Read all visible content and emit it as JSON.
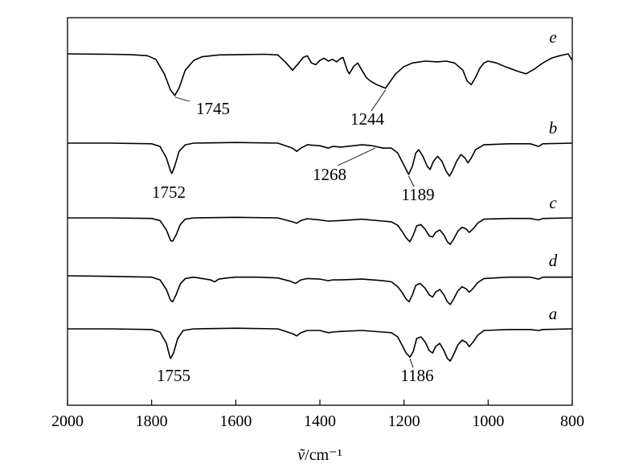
{
  "chart_data": {
    "type": "line",
    "title": "",
    "xlabel_symbol": "ṽ",
    "xlabel_unit": "/cm⁻¹",
    "xlim": [
      2000,
      800
    ],
    "x_ticks": [
      "2000",
      "1800",
      "1600",
      "1400",
      "1200",
      "1000",
      "800"
    ],
    "series": [
      {
        "name": "e",
        "points": [
          [
            2000,
            0.0
          ],
          [
            1900,
            -0.01
          ],
          [
            1850,
            -0.02
          ],
          [
            1810,
            -0.05
          ],
          [
            1790,
            -0.15
          ],
          [
            1770,
            -0.55
          ],
          [
            1755,
            -1.0
          ],
          [
            1745,
            -1.15
          ],
          [
            1735,
            -0.95
          ],
          [
            1720,
            -0.45
          ],
          [
            1700,
            -0.18
          ],
          [
            1680,
            -0.08
          ],
          [
            1640,
            -0.03
          ],
          [
            1590,
            -0.02
          ],
          [
            1530,
            -0.01
          ],
          [
            1500,
            -0.03
          ],
          [
            1480,
            -0.25
          ],
          [
            1465,
            -0.45
          ],
          [
            1450,
            -0.25
          ],
          [
            1440,
            -0.1
          ],
          [
            1430,
            -0.05
          ],
          [
            1420,
            -0.25
          ],
          [
            1410,
            -0.3
          ],
          [
            1400,
            -0.18
          ],
          [
            1390,
            -0.12
          ],
          [
            1380,
            -0.2
          ],
          [
            1370,
            -0.15
          ],
          [
            1360,
            -0.22
          ],
          [
            1350,
            -0.12
          ],
          [
            1345,
            -0.1
          ],
          [
            1335,
            -0.45
          ],
          [
            1330,
            -0.55
          ],
          [
            1320,
            -0.35
          ],
          [
            1310,
            -0.25
          ],
          [
            1300,
            -0.45
          ],
          [
            1290,
            -0.65
          ],
          [
            1280,
            -0.75
          ],
          [
            1265,
            -0.85
          ],
          [
            1250,
            -0.92
          ],
          [
            1244,
            -0.95
          ],
          [
            1235,
            -0.8
          ],
          [
            1220,
            -0.55
          ],
          [
            1200,
            -0.35
          ],
          [
            1180,
            -0.25
          ],
          [
            1150,
            -0.2
          ],
          [
            1120,
            -0.22
          ],
          [
            1100,
            -0.2
          ],
          [
            1080,
            -0.25
          ],
          [
            1060,
            -0.45
          ],
          [
            1050,
            -0.75
          ],
          [
            1040,
            -0.85
          ],
          [
            1030,
            -0.65
          ],
          [
            1020,
            -0.4
          ],
          [
            1010,
            -0.25
          ],
          [
            1000,
            -0.2
          ],
          [
            980,
            -0.25
          ],
          [
            960,
            -0.35
          ],
          [
            930,
            -0.48
          ],
          [
            910,
            -0.55
          ],
          [
            890,
            -0.42
          ],
          [
            870,
            -0.25
          ],
          [
            850,
            -0.12
          ],
          [
            830,
            -0.05
          ],
          [
            810,
            0.0
          ],
          [
            800,
            -0.18
          ]
        ]
      },
      {
        "name": "b",
        "points": [
          [
            2000,
            0.0
          ],
          [
            1900,
            0.0
          ],
          [
            1800,
            -0.02
          ],
          [
            1780,
            -0.1
          ],
          [
            1765,
            -0.45
          ],
          [
            1755,
            -0.85
          ],
          [
            1752,
            -0.92
          ],
          [
            1745,
            -0.7
          ],
          [
            1735,
            -0.25
          ],
          [
            1720,
            -0.05
          ],
          [
            1700,
            0.0
          ],
          [
            1600,
            0.02
          ],
          [
            1500,
            0.0
          ],
          [
            1465,
            -0.15
          ],
          [
            1455,
            -0.25
          ],
          [
            1445,
            -0.15
          ],
          [
            1430,
            -0.05
          ],
          [
            1400,
            -0.08
          ],
          [
            1380,
            -0.15
          ],
          [
            1370,
            -0.1
          ],
          [
            1350,
            -0.12
          ],
          [
            1300,
            -0.05
          ],
          [
            1280,
            -0.07
          ],
          [
            1268,
            -0.1
          ],
          [
            1250,
            -0.15
          ],
          [
            1230,
            -0.15
          ],
          [
            1215,
            -0.3
          ],
          [
            1205,
            -0.55
          ],
          [
            1195,
            -0.8
          ],
          [
            1189,
            -0.95
          ],
          [
            1180,
            -0.7
          ],
          [
            1172,
            -0.3
          ],
          [
            1165,
            -0.2
          ],
          [
            1155,
            -0.4
          ],
          [
            1145,
            -0.7
          ],
          [
            1138,
            -0.8
          ],
          [
            1130,
            -0.55
          ],
          [
            1120,
            -0.4
          ],
          [
            1110,
            -0.55
          ],
          [
            1100,
            -0.85
          ],
          [
            1092,
            -1.0
          ],
          [
            1085,
            -0.85
          ],
          [
            1075,
            -0.55
          ],
          [
            1065,
            -0.35
          ],
          [
            1055,
            -0.45
          ],
          [
            1048,
            -0.6
          ],
          [
            1040,
            -0.45
          ],
          [
            1030,
            -0.2
          ],
          [
            1010,
            -0.05
          ],
          [
            950,
            -0.02
          ],
          [
            900,
            -0.02
          ],
          [
            880,
            -0.1
          ],
          [
            870,
            -0.02
          ],
          [
            800,
            0.0
          ]
        ]
      },
      {
        "name": "c",
        "points": [
          [
            2000,
            0.0
          ],
          [
            1900,
            0.0
          ],
          [
            1800,
            -0.02
          ],
          [
            1780,
            -0.1
          ],
          [
            1765,
            -0.45
          ],
          [
            1755,
            -0.85
          ],
          [
            1750,
            -0.88
          ],
          [
            1742,
            -0.65
          ],
          [
            1732,
            -0.25
          ],
          [
            1720,
            -0.05
          ],
          [
            1700,
            0.0
          ],
          [
            1600,
            0.02
          ],
          [
            1500,
            0.0
          ],
          [
            1465,
            -0.15
          ],
          [
            1455,
            -0.2
          ],
          [
            1445,
            -0.1
          ],
          [
            1430,
            -0.03
          ],
          [
            1400,
            -0.08
          ],
          [
            1380,
            -0.12
          ],
          [
            1350,
            -0.1
          ],
          [
            1300,
            -0.05
          ],
          [
            1250,
            -0.12
          ],
          [
            1230,
            -0.15
          ],
          [
            1215,
            -0.28
          ],
          [
            1205,
            -0.5
          ],
          [
            1195,
            -0.75
          ],
          [
            1186,
            -0.9
          ],
          [
            1178,
            -0.65
          ],
          [
            1170,
            -0.3
          ],
          [
            1160,
            -0.25
          ],
          [
            1150,
            -0.42
          ],
          [
            1140,
            -0.68
          ],
          [
            1132,
            -0.72
          ],
          [
            1125,
            -0.55
          ],
          [
            1115,
            -0.45
          ],
          [
            1105,
            -0.65
          ],
          [
            1097,
            -0.9
          ],
          [
            1090,
            -1.0
          ],
          [
            1082,
            -0.8
          ],
          [
            1072,
            -0.5
          ],
          [
            1062,
            -0.35
          ],
          [
            1052,
            -0.42
          ],
          [
            1045,
            -0.55
          ],
          [
            1035,
            -0.4
          ],
          [
            1025,
            -0.2
          ],
          [
            1010,
            -0.05
          ],
          [
            950,
            -0.02
          ],
          [
            900,
            -0.02
          ],
          [
            880,
            -0.08
          ],
          [
            870,
            -0.02
          ],
          [
            800,
            0.0
          ]
        ]
      },
      {
        "name": "d",
        "points": [
          [
            2000,
            0.0
          ],
          [
            1900,
            -0.02
          ],
          [
            1800,
            -0.05
          ],
          [
            1780,
            -0.15
          ],
          [
            1765,
            -0.5
          ],
          [
            1755,
            -0.9
          ],
          [
            1750,
            -0.95
          ],
          [
            1742,
            -0.7
          ],
          [
            1732,
            -0.3
          ],
          [
            1720,
            -0.1
          ],
          [
            1700,
            -0.05
          ],
          [
            1680,
            -0.1
          ],
          [
            1660,
            -0.15
          ],
          [
            1650,
            -0.22
          ],
          [
            1640,
            -0.12
          ],
          [
            1620,
            -0.08
          ],
          [
            1600,
            -0.05
          ],
          [
            1550,
            -0.05
          ],
          [
            1500,
            -0.08
          ],
          [
            1470,
            -0.2
          ],
          [
            1458,
            -0.28
          ],
          [
            1445,
            -0.15
          ],
          [
            1430,
            -0.1
          ],
          [
            1400,
            -0.12
          ],
          [
            1380,
            -0.18
          ],
          [
            1370,
            -0.15
          ],
          [
            1350,
            -0.15
          ],
          [
            1300,
            -0.12
          ],
          [
            1250,
            -0.18
          ],
          [
            1230,
            -0.22
          ],
          [
            1215,
            -0.4
          ],
          [
            1205,
            -0.6
          ],
          [
            1195,
            -0.85
          ],
          [
            1188,
            -0.95
          ],
          [
            1180,
            -0.7
          ],
          [
            1172,
            -0.35
          ],
          [
            1162,
            -0.28
          ],
          [
            1150,
            -0.45
          ],
          [
            1140,
            -0.7
          ],
          [
            1132,
            -0.78
          ],
          [
            1125,
            -0.6
          ],
          [
            1115,
            -0.5
          ],
          [
            1105,
            -0.7
          ],
          [
            1097,
            -0.95
          ],
          [
            1090,
            -1.05
          ],
          [
            1082,
            -0.85
          ],
          [
            1072,
            -0.55
          ],
          [
            1062,
            -0.4
          ],
          [
            1052,
            -0.48
          ],
          [
            1045,
            -0.6
          ],
          [
            1035,
            -0.45
          ],
          [
            1025,
            -0.25
          ],
          [
            1010,
            -0.1
          ],
          [
            950,
            -0.05
          ],
          [
            900,
            -0.05
          ],
          [
            880,
            -0.12
          ],
          [
            870,
            -0.05
          ],
          [
            800,
            -0.05
          ]
        ]
      },
      {
        "name": "a",
        "points": [
          [
            2000,
            0.0
          ],
          [
            1900,
            0.0
          ],
          [
            1800,
            -0.02
          ],
          [
            1780,
            -0.1
          ],
          [
            1765,
            -0.45
          ],
          [
            1758,
            -0.8
          ],
          [
            1755,
            -0.92
          ],
          [
            1748,
            -0.75
          ],
          [
            1738,
            -0.3
          ],
          [
            1725,
            -0.05
          ],
          [
            1700,
            0.0
          ],
          [
            1600,
            0.02
          ],
          [
            1500,
            0.0
          ],
          [
            1465,
            -0.15
          ],
          [
            1455,
            -0.22
          ],
          [
            1445,
            -0.12
          ],
          [
            1430,
            -0.05
          ],
          [
            1400,
            -0.05
          ],
          [
            1380,
            -0.12
          ],
          [
            1370,
            -0.1
          ],
          [
            1350,
            -0.08
          ],
          [
            1300,
            -0.05
          ],
          [
            1250,
            -0.1
          ],
          [
            1230,
            -0.12
          ],
          [
            1215,
            -0.25
          ],
          [
            1205,
            -0.5
          ],
          [
            1195,
            -0.75
          ],
          [
            1186,
            -0.88
          ],
          [
            1178,
            -0.7
          ],
          [
            1170,
            -0.3
          ],
          [
            1160,
            -0.25
          ],
          [
            1150,
            -0.4
          ],
          [
            1140,
            -0.68
          ],
          [
            1132,
            -0.75
          ],
          [
            1125,
            -0.55
          ],
          [
            1115,
            -0.45
          ],
          [
            1105,
            -0.68
          ],
          [
            1097,
            -0.92
          ],
          [
            1090,
            -1.0
          ],
          [
            1082,
            -0.8
          ],
          [
            1072,
            -0.5
          ],
          [
            1062,
            -0.35
          ],
          [
            1052,
            -0.42
          ],
          [
            1045,
            -0.55
          ],
          [
            1035,
            -0.4
          ],
          [
            1025,
            -0.2
          ],
          [
            1010,
            -0.05
          ],
          [
            950,
            -0.02
          ],
          [
            900,
            -0.02
          ],
          [
            880,
            -0.05
          ],
          [
            870,
            -0.02
          ],
          [
            800,
            0.0
          ]
        ]
      }
    ],
    "annotations": [
      {
        "text": "1745",
        "series": "e",
        "x": 1745
      },
      {
        "text": "1244",
        "series": "e",
        "x": 1244
      },
      {
        "text": "1752",
        "series": "b",
        "x": 1752
      },
      {
        "text": "1268",
        "series": "b",
        "x": 1268
      },
      {
        "text": "1189",
        "series": "b",
        "x": 1189
      },
      {
        "text": "1755",
        "series": "a",
        "x": 1755
      },
      {
        "text": "1186",
        "series": "a",
        "x": 1186
      }
    ]
  }
}
